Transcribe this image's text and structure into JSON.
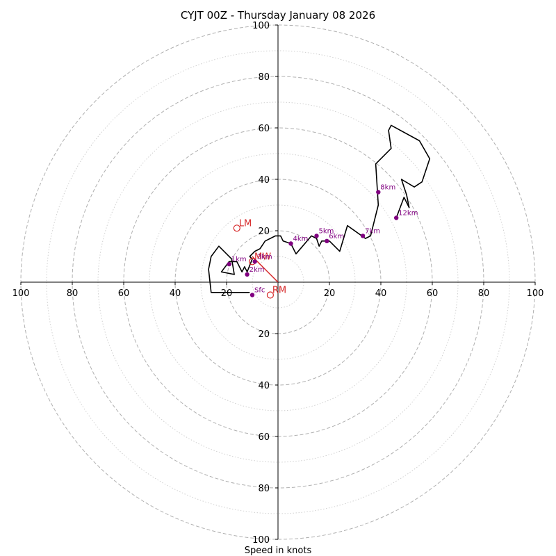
{
  "chart_data": {
    "type": "hodograph",
    "title": "CYJT 00Z - Thursday January 08 2026",
    "xlabel": "Speed in knots",
    "range_knots": 100,
    "ring_step_major": 20,
    "ring_step_minor": 10,
    "tick_labels_x": [
      "100",
      "80",
      "60",
      "40",
      "20",
      "20",
      "40",
      "60",
      "80",
      "100"
    ],
    "tick_labels_y": [
      "100",
      "80",
      "60",
      "40",
      "20",
      "20",
      "40",
      "60",
      "80",
      "100"
    ],
    "trace": [
      {
        "u": -11,
        "v": -4
      },
      {
        "u": -26,
        "v": -4
      },
      {
        "u": -27,
        "v": 5
      },
      {
        "u": -26,
        "v": 10
      },
      {
        "u": -23,
        "v": 14
      },
      {
        "u": -18,
        "v": 9
      },
      {
        "u": -17,
        "v": 3
      },
      {
        "u": -22,
        "v": 4
      },
      {
        "u": -19,
        "v": 8
      },
      {
        "u": -16,
        "v": 8
      },
      {
        "u": -14,
        "v": 4
      },
      {
        "u": -13,
        "v": 6
      },
      {
        "u": -12,
        "v": 4
      },
      {
        "u": -10,
        "v": 9
      },
      {
        "u": -11,
        "v": 10
      },
      {
        "u": -9,
        "v": 12
      },
      {
        "u": -7,
        "v": 13
      },
      {
        "u": -5,
        "v": 16
      },
      {
        "u": -1,
        "v": 18
      },
      {
        "u": 1,
        "v": 18
      },
      {
        "u": 2,
        "v": 16
      },
      {
        "u": 5,
        "v": 15
      },
      {
        "u": 7,
        "v": 11
      },
      {
        "u": 13,
        "v": 18
      },
      {
        "u": 15,
        "v": 17
      },
      {
        "u": 16,
        "v": 14
      },
      {
        "u": 17,
        "v": 16
      },
      {
        "u": 20,
        "v": 16
      },
      {
        "u": 24,
        "v": 12
      },
      {
        "u": 27,
        "v": 22
      },
      {
        "u": 34,
        "v": 17
      },
      {
        "u": 36,
        "v": 18
      },
      {
        "u": 39,
        "v": 30
      },
      {
        "u": 38,
        "v": 46
      },
      {
        "u": 44,
        "v": 52
      },
      {
        "u": 43,
        "v": 59
      },
      {
        "u": 44,
        "v": 61
      },
      {
        "u": 55,
        "v": 55
      },
      {
        "u": 59,
        "v": 48
      },
      {
        "u": 56,
        "v": 39
      },
      {
        "u": 53,
        "v": 37
      },
      {
        "u": 48,
        "v": 40
      },
      {
        "u": 50,
        "v": 34
      },
      {
        "u": 51,
        "v": 29
      },
      {
        "u": 49,
        "v": 33
      },
      {
        "u": 46,
        "v": 25
      }
    ],
    "levels": [
      {
        "label": "Sfc",
        "u": -10,
        "v": -5
      },
      {
        "label": "1km",
        "u": -19,
        "v": 7
      },
      {
        "label": "2km",
        "u": -12,
        "v": 3
      },
      {
        "label": "3km",
        "u": -9,
        "v": 8
      },
      {
        "label": "4km",
        "u": 5,
        "v": 15
      },
      {
        "label": "5km",
        "u": 15,
        "v": 18
      },
      {
        "label": "6km",
        "u": 19,
        "v": 16
      },
      {
        "label": "7km",
        "u": 33,
        "v": 18
      },
      {
        "label": "8km",
        "u": 39,
        "v": 35
      },
      {
        "label": "12km",
        "u": 46,
        "v": 25
      }
    ],
    "storm_motion": [
      {
        "label": "LM",
        "u": -16,
        "v": 21
      },
      {
        "label": "MW",
        "u": -10,
        "v": 8
      },
      {
        "label": "RM",
        "u": -3,
        "v": -5
      }
    ],
    "mean_wind_vector": {
      "u": -10,
      "v": 10
    },
    "colors": {
      "trace": "#000000",
      "level_marker": "#800080",
      "storm_motion": "#d62728",
      "ring_major": "#b0b0b0",
      "ring_minor": "#d0d0d0",
      "axes": "#000000"
    }
  }
}
